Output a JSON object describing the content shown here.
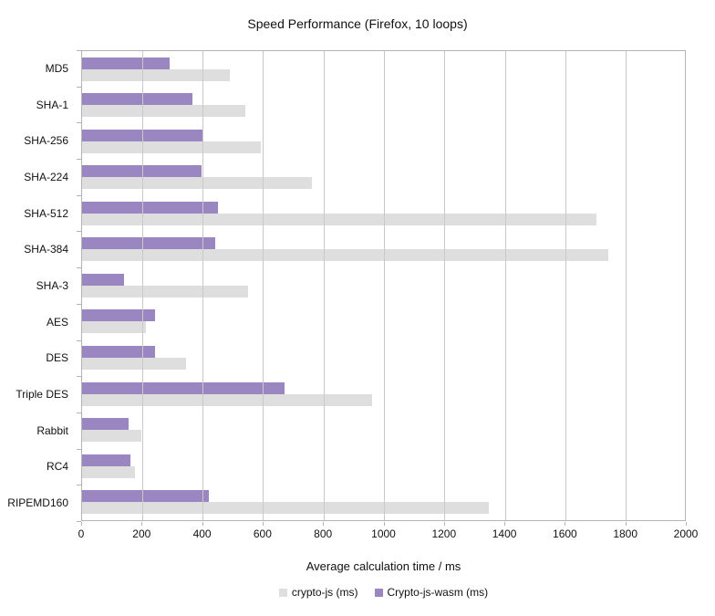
{
  "chart_data": {
    "type": "bar",
    "orientation": "horizontal",
    "title": "Speed Performance (Firefox, 10 loops)",
    "xlabel": "Average calculation time / ms",
    "ylabel": "",
    "xlim": [
      0,
      2000
    ],
    "xticks": [
      0,
      200,
      400,
      600,
      800,
      1000,
      1200,
      1400,
      1600,
      1800,
      2000
    ],
    "grid": true,
    "legend_position": "bottom",
    "categories": [
      "MD5",
      "SHA-1",
      "SHA-256",
      "SHA-224",
      "SHA-512",
      "SHA-384",
      "SHA-3",
      "AES",
      "DES",
      "Triple DES",
      "Rabbit",
      "RC4",
      "RIPEMD160"
    ],
    "series": [
      {
        "name": "crypto-js (ms)",
        "color": "#dedede",
        "values": [
          490,
          540,
          590,
          760,
          1700,
          1740,
          550,
          210,
          345,
          960,
          195,
          175,
          1345
        ]
      },
      {
        "name": "Crypto-js-wasm (ms)",
        "color": "#9a86c0",
        "values": [
          290,
          365,
          400,
          395,
          450,
          440,
          140,
          240,
          240,
          670,
          155,
          160,
          420
        ]
      }
    ]
  },
  "colors": {
    "gridline": "#c9c9c9",
    "axis": "#b3b3b3",
    "background": "#ffffff",
    "text": "#111111"
  }
}
